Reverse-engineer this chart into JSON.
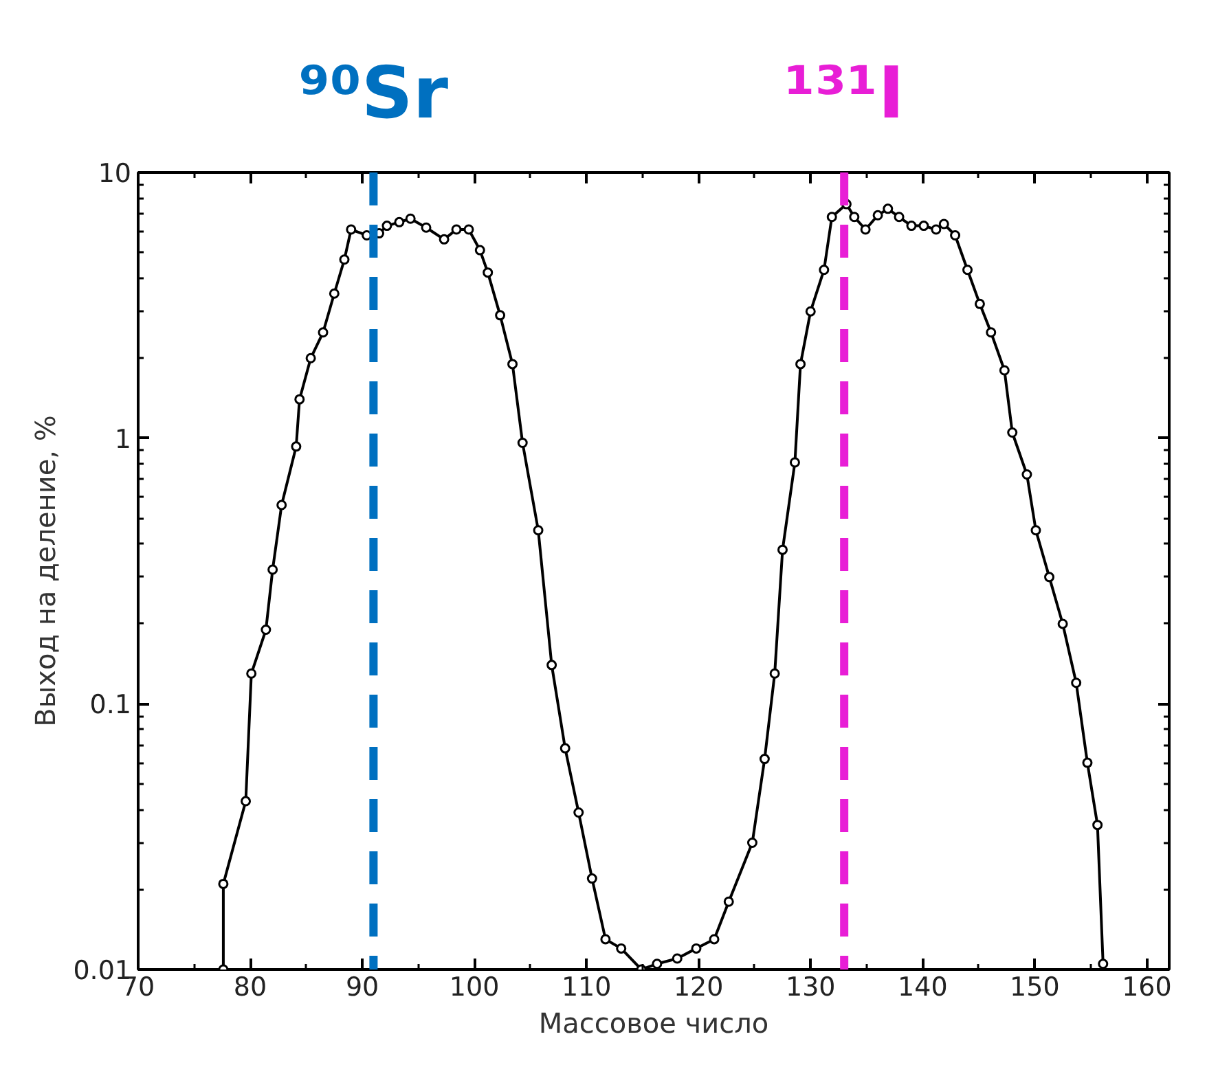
{
  "chart_data": {
    "type": "line",
    "xlabel": "Массовое число",
    "ylabel": "Выход на деление, %",
    "x": [
      77.6,
      77.6,
      79.6,
      80.1,
      81.4,
      82.0,
      82.8,
      84.1,
      84.4,
      85.4,
      86.5,
      87.5,
      88.4,
      89.0,
      90.4,
      91.5,
      92.2,
      93.3,
      94.3,
      95.7,
      97.3,
      98.4,
      99.5,
      100.5,
      101.2,
      102.3,
      103.4,
      104.3,
      105.7,
      106.9,
      108.1,
      109.3,
      110.5,
      111.7,
      113.1,
      114.9,
      116.3,
      118.1,
      119.8,
      121.4,
      122.7,
      124.8,
      125.9,
      126.8,
      127.5,
      128.6,
      129.1,
      130.0,
      131.2,
      131.9,
      133.2,
      133.9,
      134.9,
      136.0,
      136.9,
      137.9,
      139.0,
      140.1,
      141.2,
      141.9,
      142.9,
      144.0,
      145.1,
      146.1,
      147.3,
      148.0,
      149.3,
      150.1,
      151.3,
      152.5,
      153.7,
      154.7,
      155.6,
      156.1
    ],
    "series": [
      {
        "color": "#000000",
        "values": [
          0.01,
          0.021,
          0.043,
          0.13,
          0.19,
          0.32,
          0.56,
          0.93,
          1.4,
          2.0,
          2.5,
          3.5,
          4.7,
          6.1,
          5.8,
          5.9,
          6.3,
          6.5,
          6.7,
          6.2,
          5.6,
          6.1,
          6.1,
          5.1,
          4.2,
          2.9,
          1.9,
          0.96,
          0.45,
          0.14,
          0.068,
          0.039,
          0.022,
          0.013,
          0.012,
          0.01,
          0.0105,
          0.011,
          0.012,
          0.013,
          0.018,
          0.03,
          0.062,
          0.13,
          0.38,
          0.81,
          1.9,
          3.0,
          4.3,
          6.8,
          7.6,
          6.8,
          6.1,
          6.9,
          7.3,
          6.8,
          6.3,
          6.3,
          6.1,
          6.4,
          5.8,
          4.3,
          3.2,
          2.5,
          1.8,
          1.05,
          0.73,
          0.45,
          0.3,
          0.2,
          0.12,
          0.06,
          0.035,
          0.0105
        ]
      }
    ],
    "marker": "circle",
    "line_style": "solid",
    "log": "y",
    "grid": false,
    "xlim": [
      70,
      162
    ],
    "xticks": [
      70,
      80,
      90,
      100,
      110,
      120,
      130,
      140,
      150,
      160
    ],
    "ylim": [
      0.01,
      10
    ],
    "yticks": [
      {
        "value": 0.01,
        "label": "0.01"
      },
      {
        "value": 0.1,
        "label": "0.1"
      },
      {
        "value": 1,
        "label": "1"
      },
      {
        "value": 10,
        "label": "10"
      }
    ],
    "ref_lines": [
      {
        "axis": "x",
        "value": 91,
        "label": "⁹⁰Sr",
        "color": "#0070c0",
        "line_style": "dashed"
      },
      {
        "axis": "x",
        "value": 133,
        "label": "¹³¹I",
        "color": "#e81ed6",
        "line_style": "dashed"
      }
    ]
  }
}
